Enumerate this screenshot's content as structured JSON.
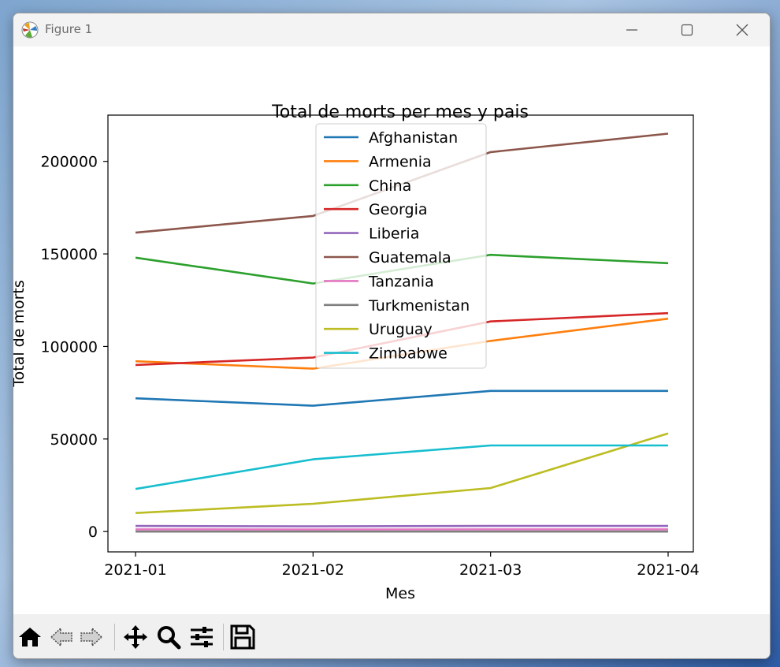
{
  "window": {
    "title": "Figure 1"
  },
  "toolbar": {
    "buttons": [
      "home-icon",
      "back-icon",
      "forward-icon",
      "pan-icon",
      "zoom-icon",
      "configure-icon",
      "save-icon"
    ]
  },
  "colors": {
    "Afghanistan": "#1f77b4",
    "Armenia": "#ff7f0e",
    "China": "#2ca02c",
    "Georgia": "#d62728",
    "Liberia": "#9467bd",
    "Guatemala": "#8c564b",
    "Tanzania": "#e377c2",
    "Turkmenistan": "#7f7f7f",
    "Uruguay": "#bcbd22",
    "Zimbabwe": "#17becf"
  },
  "chart_data": {
    "type": "line",
    "title": "Total de morts per mes y pais",
    "xlabel": "Mes",
    "ylabel": "Total de morts",
    "categories": [
      "2021-01",
      "2021-02",
      "2021-03",
      "2021-04"
    ],
    "yticks": [
      0,
      50000,
      100000,
      150000,
      200000
    ],
    "ylim": [
      -11000,
      225000
    ],
    "legend_position": "upper center",
    "grid": false,
    "series": [
      {
        "name": "Afghanistan",
        "values": [
          72000,
          68000,
          76000,
          76000
        ]
      },
      {
        "name": "Armenia",
        "values": [
          92000,
          88000,
          103000,
          115000
        ]
      },
      {
        "name": "China",
        "values": [
          148000,
          134000,
          149500,
          145000
        ]
      },
      {
        "name": "Georgia",
        "values": [
          90000,
          94000,
          113500,
          118000
        ]
      },
      {
        "name": "Liberia",
        "values": [
          3000,
          2800,
          3000,
          3000
        ]
      },
      {
        "name": "Guatemala",
        "values": [
          161500,
          170500,
          205000,
          215000
        ]
      },
      {
        "name": "Tanzania",
        "values": [
          1200,
          1100,
          1200,
          1200
        ]
      },
      {
        "name": "Turkmenistan",
        "values": [
          0,
          0,
          0,
          0
        ]
      },
      {
        "name": "Uruguay",
        "values": [
          10000,
          15000,
          23500,
          53000
        ]
      },
      {
        "name": "Zimbabwe",
        "values": [
          23000,
          39000,
          46500,
          46500
        ]
      }
    ]
  }
}
